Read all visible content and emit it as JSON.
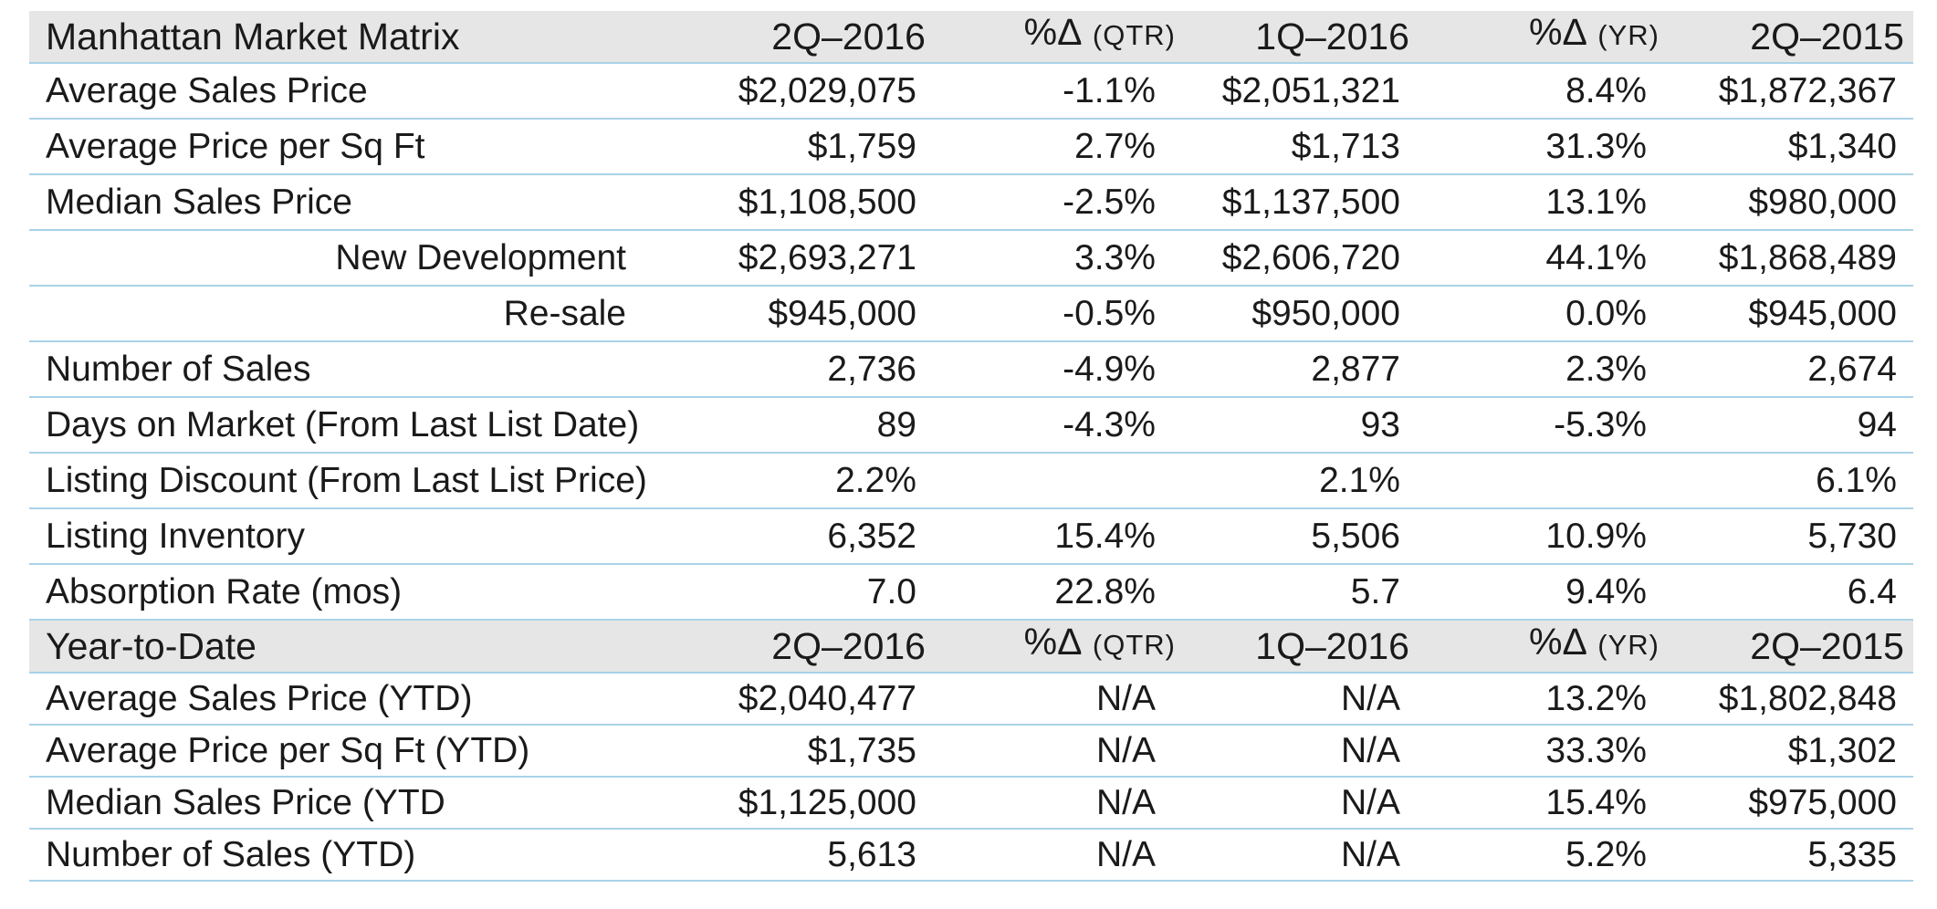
{
  "chart_data": {
    "type": "table",
    "title": "Manhattan Market Matrix",
    "columns": [
      "2Q–2016",
      "%Δ",
      "1Q–2016",
      "%Δ",
      "2Q–2015"
    ],
    "column_subs": [
      "",
      "(QTR)",
      "",
      "(YR)",
      ""
    ],
    "rows": [
      {
        "label": "Average Sales Price",
        "indent": false,
        "values": [
          "$2,029,075",
          "-1.1%",
          "$2,051,321",
          "8.4%",
          "$1,872,367"
        ]
      },
      {
        "label": "Average Price per Sq Ft",
        "indent": false,
        "values": [
          "$1,759",
          "2.7%",
          "$1,713",
          "31.3%",
          "$1,340"
        ]
      },
      {
        "label": "Median Sales Price",
        "indent": false,
        "values": [
          "$1,108,500",
          "-2.5%",
          "$1,137,500",
          "13.1%",
          "$980,000"
        ]
      },
      {
        "label": "New Development",
        "indent": true,
        "values": [
          "$2,693,271",
          "3.3%",
          "$2,606,720",
          "44.1%",
          "$1,868,489"
        ]
      },
      {
        "label": "Re-sale",
        "indent": true,
        "values": [
          "$945,000",
          "-0.5%",
          "$950,000",
          "0.0%",
          "$945,000"
        ]
      },
      {
        "label": "Number of Sales",
        "indent": false,
        "values": [
          "2,736",
          "-4.9%",
          "2,877",
          "2.3%",
          "2,674"
        ]
      },
      {
        "label": "Days on Market (From Last List Date)",
        "indent": false,
        "values": [
          "89",
          "-4.3%",
          "93",
          "-5.3%",
          "94"
        ]
      },
      {
        "label": "Listing Discount (From Last List Price)",
        "indent": false,
        "values": [
          "2.2%",
          "",
          "2.1%",
          "",
          "6.1%"
        ]
      },
      {
        "label": "Listing Inventory",
        "indent": false,
        "values": [
          "6,352",
          "15.4%",
          "5,506",
          "10.9%",
          "5,730"
        ]
      },
      {
        "label": "Absorption Rate (mos)",
        "indent": false,
        "values": [
          "7.0",
          "22.8%",
          "5.7",
          "9.4%",
          "6.4"
        ]
      }
    ],
    "ytd": {
      "title": "Year-to-Date",
      "rows": [
        {
          "label": "Average Sales Price (YTD)",
          "values": [
            "$2,040,477",
            "N/A",
            "N/A",
            "13.2%",
            "$1,802,848"
          ]
        },
        {
          "label": "Average Price per Sq Ft (YTD)",
          "values": [
            "$1,735",
            "N/A",
            "N/A",
            "33.3%",
            "$1,302"
          ]
        },
        {
          "label": "Median Sales Price (YTD",
          "values": [
            "$1,125,000",
            "N/A",
            "N/A",
            "15.4%",
            "$975,000"
          ]
        },
        {
          "label": "Number of Sales (YTD)",
          "values": [
            "5,613",
            "N/A",
            "N/A",
            "5.2%",
            "5,335"
          ]
        }
      ]
    }
  },
  "colors": {
    "header_bg": "#e6e6e6",
    "rule": "#a9d3e6",
    "text": "#1a1a1a"
  }
}
